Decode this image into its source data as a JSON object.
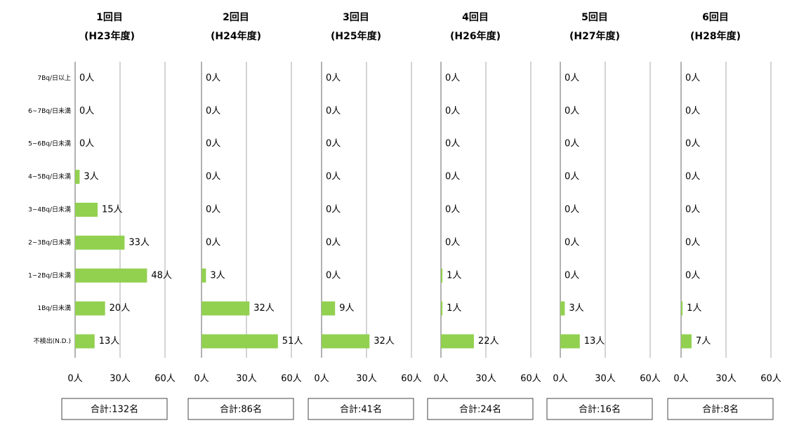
{
  "chart_data": [
    {
      "type": "bar",
      "title": "1回目",
      "subtitle": "(H23年度)",
      "categories": [
        "7Bq/日以上",
        "6~7Bq/日未満",
        "5~6Bq/日未満",
        "4~5Bq/日未満",
        "3~4Bq/日未満",
        "2~3Bq/日未満",
        "1~2Bq/日未満",
        "1Bq/日未満",
        "不検出(N.D.)"
      ],
      "values": [
        0,
        0,
        0,
        3,
        15,
        33,
        48,
        20,
        13
      ],
      "value_labels": [
        "0人",
        "0人",
        "0人",
        "3人",
        "15人",
        "33人",
        "48人",
        "20人",
        "13人"
      ],
      "color": "#92d050",
      "xlim": [
        0,
        60
      ],
      "xticks": [
        {
          "value": 0,
          "label": "0人"
        },
        {
          "value": 30,
          "label": "30人"
        },
        {
          "value": 60,
          "label": "60人"
        }
      ],
      "grid": true,
      "annotation": "合計:132名"
    },
    {
      "type": "bar",
      "title": "2回目",
      "subtitle": "(H24年度)",
      "values": [
        0,
        0,
        0,
        0,
        0,
        0,
        3,
        32,
        51
      ],
      "value_labels": [
        "0人",
        "0人",
        "0人",
        "0人",
        "0人",
        "0人",
        "3人",
        "32人",
        "51人"
      ],
      "color": "#92d050",
      "xlim": [
        0,
        60
      ],
      "xticks": [
        {
          "value": 0,
          "label": "0人"
        },
        {
          "value": 30,
          "label": "30人"
        },
        {
          "value": 60,
          "label": "60人"
        }
      ],
      "grid": true,
      "annotation": "合計:86名"
    },
    {
      "type": "bar",
      "title": "3回目",
      "subtitle": "(H25年度)",
      "values": [
        0,
        0,
        0,
        0,
        0,
        0,
        0,
        9,
        32
      ],
      "value_labels": [
        "0人",
        "0人",
        "0人",
        "0人",
        "0人",
        "0人",
        "0人",
        "9人",
        "32人"
      ],
      "color": "#92d050",
      "xlim": [
        0,
        60
      ],
      "xticks": [
        {
          "value": 0,
          "label": "0人"
        },
        {
          "value": 30,
          "label": "30人"
        },
        {
          "value": 60,
          "label": "60人"
        }
      ],
      "grid": true,
      "annotation": "合計:41名"
    },
    {
      "type": "bar",
      "title": "4回目",
      "subtitle": "(H26年度)",
      "values": [
        0,
        0,
        0,
        0,
        0,
        0,
        1,
        1,
        22
      ],
      "value_labels": [
        "0人",
        "0人",
        "0人",
        "0人",
        "0人",
        "0人",
        "1人",
        "1人",
        "22人"
      ],
      "color": "#92d050",
      "xlim": [
        0,
        60
      ],
      "xticks": [
        {
          "value": 0,
          "label": "0人"
        },
        {
          "value": 30,
          "label": "30人"
        },
        {
          "value": 60,
          "label": "60人"
        }
      ],
      "grid": true,
      "annotation": "合計:24名"
    },
    {
      "type": "bar",
      "title": "5回目",
      "subtitle": "(H27年度)",
      "values": [
        0,
        0,
        0,
        0,
        0,
        0,
        0,
        3,
        13
      ],
      "value_labels": [
        "0人",
        "0人",
        "0人",
        "0人",
        "0人",
        "0人",
        "0人",
        "3人",
        "13人"
      ],
      "color": "#92d050",
      "xlim": [
        0,
        60
      ],
      "xticks": [
        {
          "value": 0,
          "label": "0人"
        },
        {
          "value": 30,
          "label": "30人"
        },
        {
          "value": 60,
          "label": "60人"
        }
      ],
      "grid": true,
      "annotation": "合計:16名"
    },
    {
      "type": "bar",
      "title": "6回目",
      "subtitle": "(H28年度)",
      "values": [
        0,
        0,
        0,
        0,
        0,
        0,
        0,
        1,
        7
      ],
      "value_labels": [
        "0人",
        "0人",
        "0人",
        "0人",
        "0人",
        "0人",
        "0人",
        "1人",
        "7人"
      ],
      "color": "#92d050",
      "xlim": [
        0,
        60
      ],
      "xticks": [
        {
          "value": 0,
          "label": "0人"
        },
        {
          "value": 30,
          "label": "30人"
        },
        {
          "value": 60,
          "label": "60人"
        }
      ],
      "grid": true,
      "annotation": "合計:8名"
    }
  ]
}
